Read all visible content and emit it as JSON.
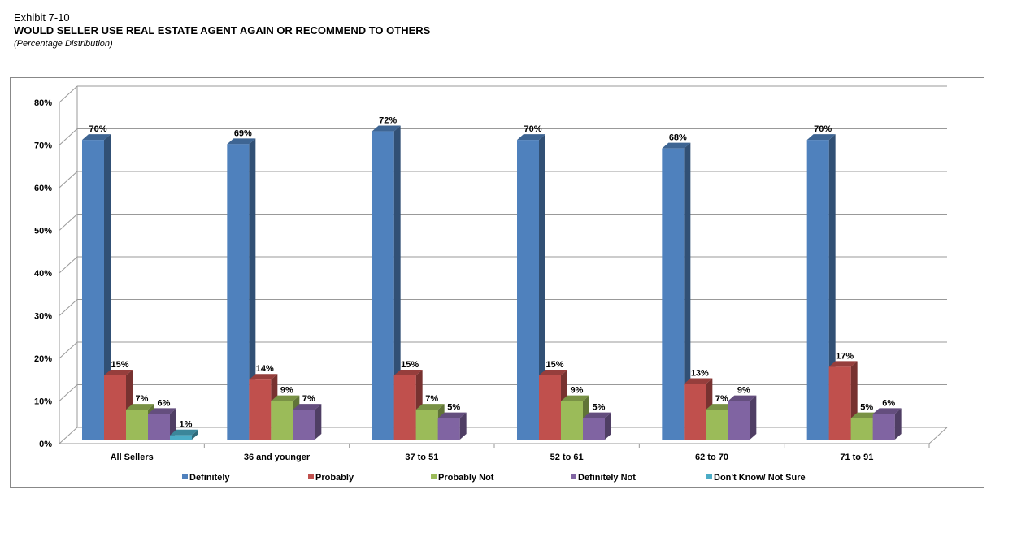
{
  "header": {
    "exhibit": "Exhibit 7-10",
    "title": "WOULD SELLER USE REAL ESTATE AGENT AGAIN OR RECOMMEND TO OTHERS",
    "subtitle": "(Percentage Distribution)"
  },
  "chart_data": {
    "type": "bar",
    "style": "3d-clustered-column",
    "title": "WOULD SELLER USE REAL ESTATE AGENT AGAIN OR RECOMMEND TO OTHERS",
    "subtitle": "(Percentage Distribution)",
    "xlabel": "",
    "ylabel": "",
    "ylim": [
      0,
      80
    ],
    "yticks": [
      "0%",
      "10%",
      "20%",
      "30%",
      "40%",
      "50%",
      "60%",
      "70%",
      "80%"
    ],
    "grid": true,
    "legend_position": "bottom",
    "categories": [
      "All Sellers",
      "36 and younger",
      "37 to 51",
      "52 to 61",
      "62 to 70",
      "71 to 91"
    ],
    "series": [
      {
        "name": "Definitely",
        "color": "#4F81BD",
        "values": [
          70,
          69,
          72,
          70,
          68,
          70
        ]
      },
      {
        "name": "Probably",
        "color": "#C0504D",
        "values": [
          15,
          14,
          15,
          15,
          13,
          17
        ]
      },
      {
        "name": "Probably Not",
        "color": "#9BBB59",
        "values": [
          7,
          9,
          7,
          9,
          7,
          5
        ]
      },
      {
        "name": "Definitely Not",
        "color": "#8064A2",
        "values": [
          6,
          7,
          5,
          5,
          9,
          6
        ]
      },
      {
        "name": "Don't Know/ Not Sure",
        "color": "#4BACC6",
        "values": [
          1,
          null,
          null,
          null,
          null,
          null
        ]
      }
    ]
  }
}
